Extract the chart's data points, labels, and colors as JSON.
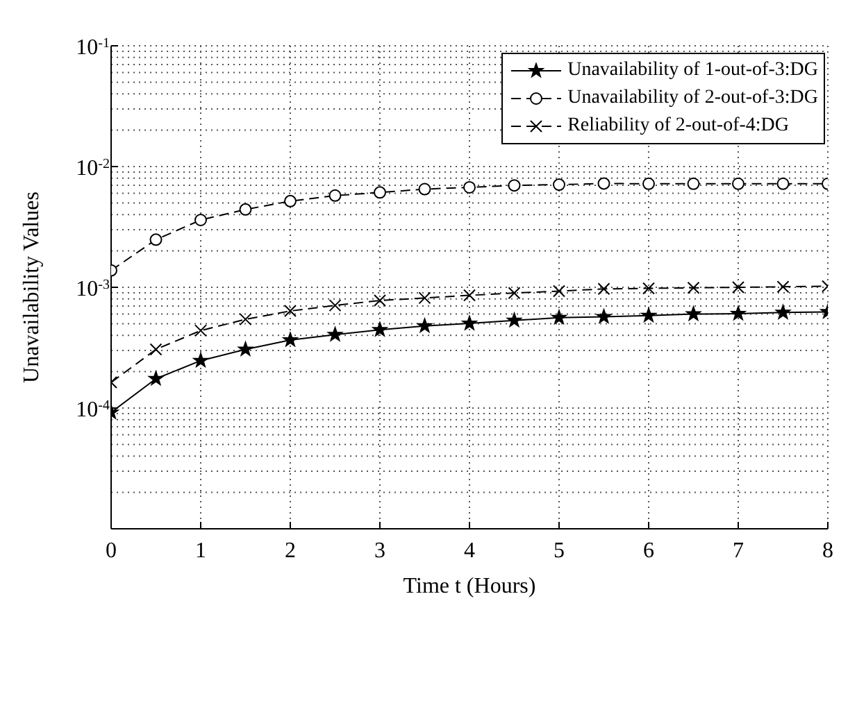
{
  "chart_data": {
    "type": "line",
    "xlabel": "Time  t (Hours)",
    "ylabel": "Unavailability Values",
    "x": [
      0,
      0.5,
      1,
      1.5,
      2,
      2.5,
      3,
      3.5,
      4,
      4.5,
      5,
      5.5,
      6,
      6.5,
      7,
      7.5,
      8
    ],
    "series": [
      {
        "name": "Unavailability of 1-out-of-3:DG",
        "color": "#000000",
        "marker": "star",
        "line_style": "solid",
        "values": [
          9.2e-05,
          0.000175,
          0.000247,
          0.000306,
          0.000366,
          0.000405,
          0.000445,
          0.000478,
          0.000502,
          0.000532,
          0.00056,
          0.00057,
          0.000583,
          0.0006,
          0.000605,
          0.000618,
          0.000626
        ]
      },
      {
        "name": "Unavailability of 2-out-of-3:DG",
        "color": "#000000",
        "marker": "circle",
        "line_style": "dashed",
        "values": [
          0.00138,
          0.00248,
          0.00361,
          0.00441,
          0.00517,
          0.00575,
          0.0061,
          0.0065,
          0.00673,
          0.00698,
          0.00708,
          0.00724,
          0.0072,
          0.0072,
          0.0072,
          0.0072,
          0.0072
        ]
      },
      {
        "name": "Reliability of 2-out-of-4:DG",
        "color": "#000000",
        "marker": "cross",
        "line_style": "dashed",
        "values": [
          0.000163,
          0.000306,
          0.000438,
          0.000543,
          0.000637,
          0.000708,
          0.000778,
          0.000816,
          0.000858,
          0.000897,
          0.000929,
          0.00097,
          0.00098,
          0.00099,
          0.001,
          0.00101,
          0.00102
        ]
      }
    ],
    "xlim": [
      0,
      8
    ],
    "xticks": [
      0,
      1,
      2,
      3,
      4,
      5,
      6,
      7,
      8
    ],
    "log": "y",
    "ylim": [
      1e-05,
      0.1
    ],
    "yticks": [
      {
        "value": 1e-05,
        "label": null
      },
      {
        "value": 0.0001,
        "label": "10$^{-4}$"
      },
      {
        "value": 0.001,
        "label": "10$^{-3}$"
      },
      {
        "value": 0.01,
        "label": "10$^{-2}$"
      },
      {
        "value": 0.1,
        "label": "10$^{-1}$"
      }
    ],
    "grid": true,
    "legend": "top right"
  }
}
